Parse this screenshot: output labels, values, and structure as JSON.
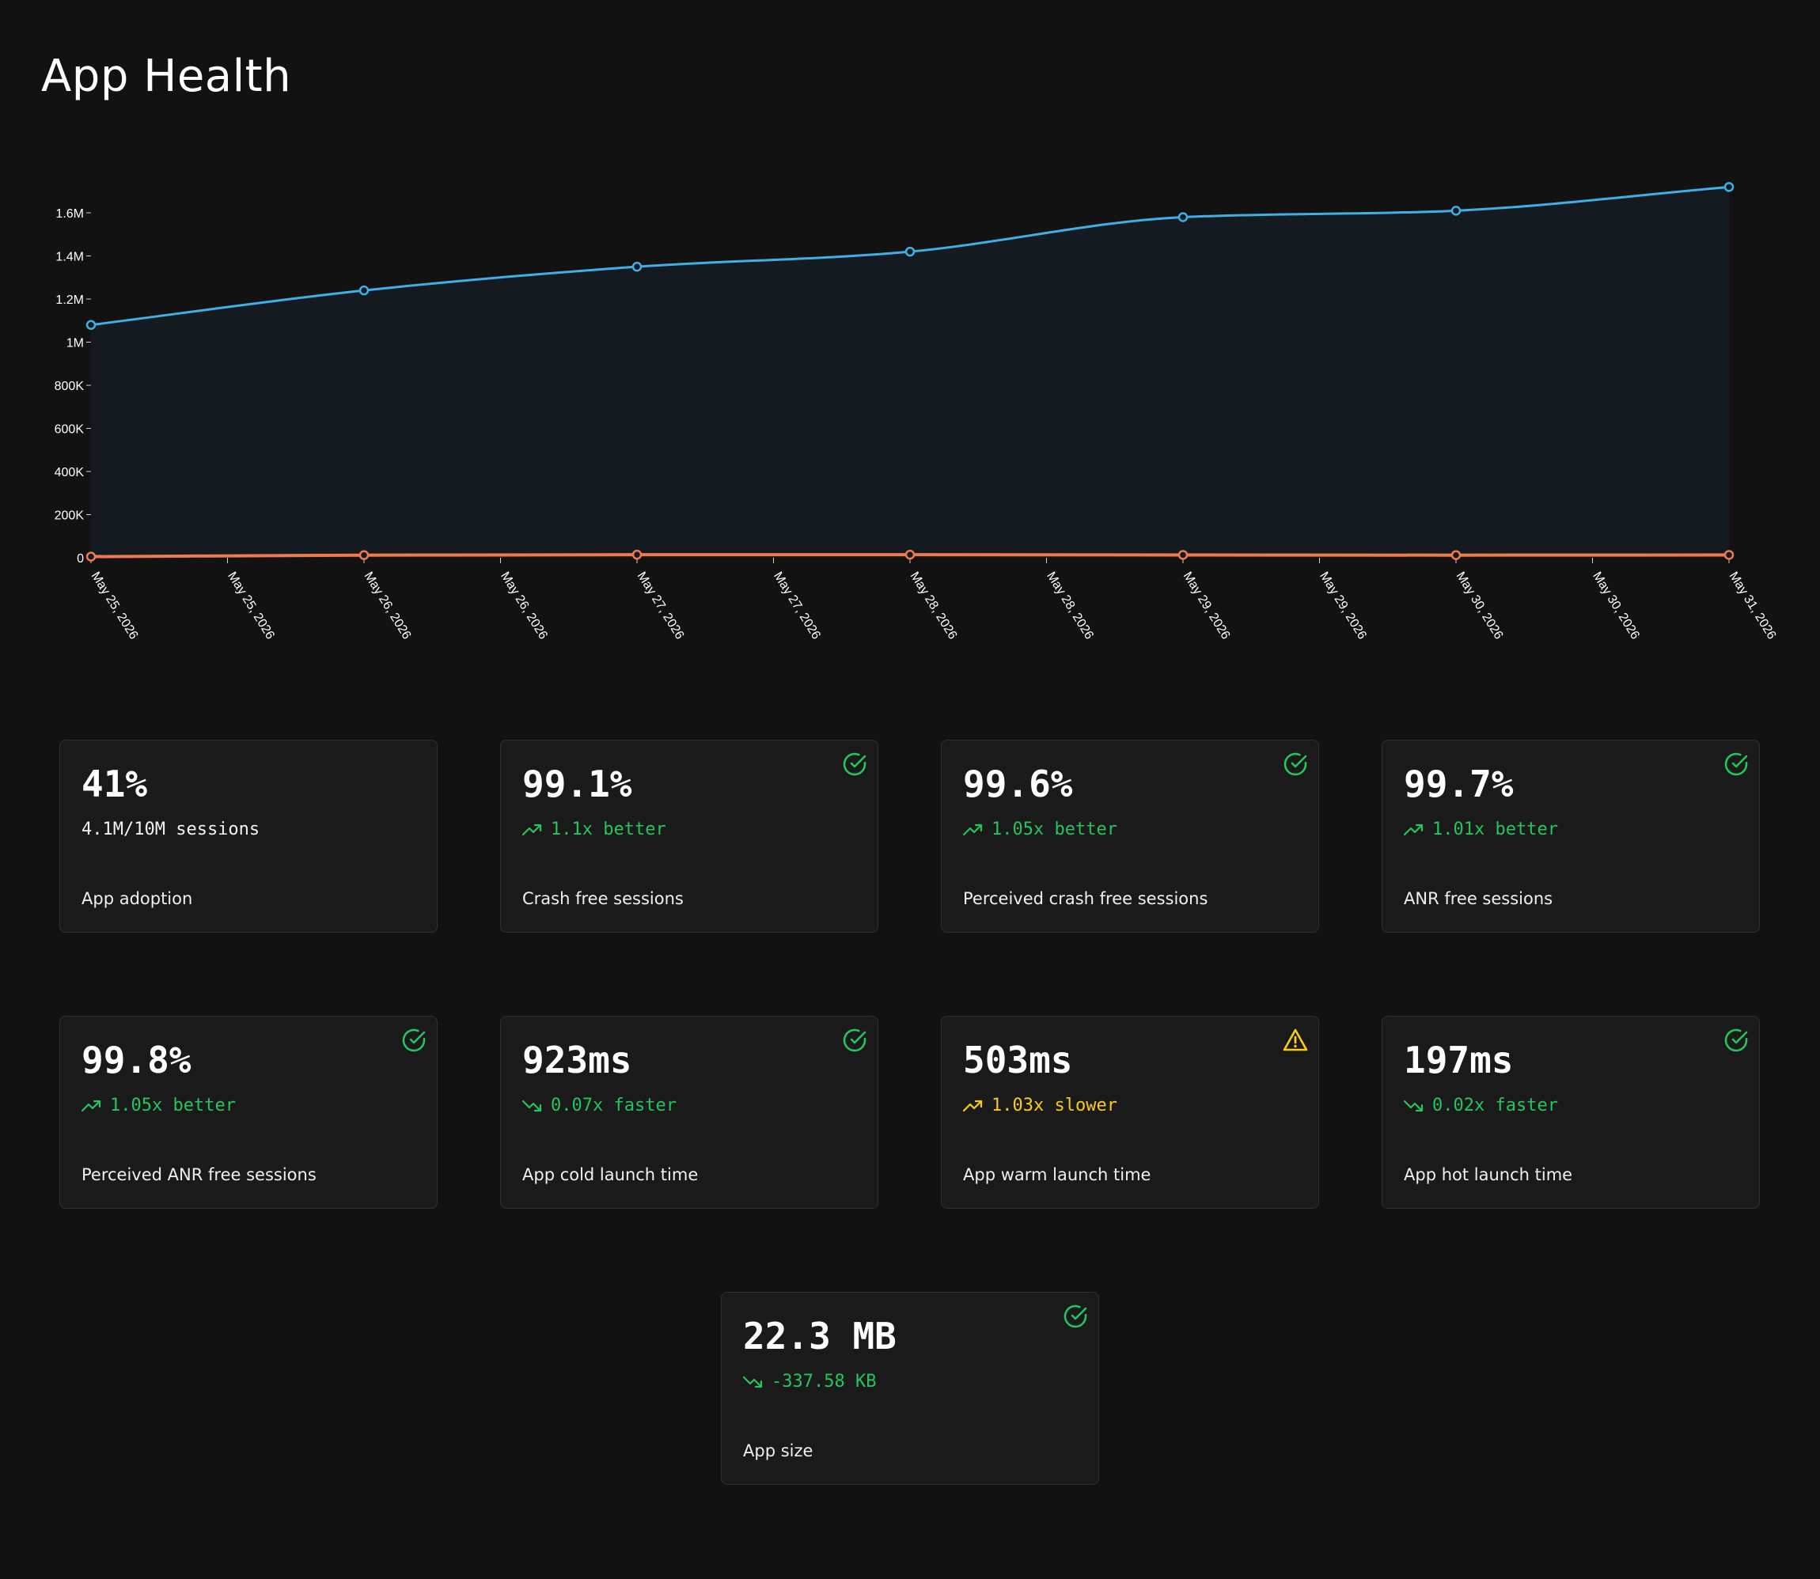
{
  "page": {
    "title": "App Health"
  },
  "colors": {
    "background": "#121212",
    "card_background": "#1a1a1a",
    "card_border": "#303030",
    "good": "#22c55e",
    "warn": "#facc15",
    "series_sessions": "#3fb0e6",
    "series_crashes": "#f07a50",
    "area_fill": "#141a20"
  },
  "chart_data": {
    "type": "line",
    "title": "",
    "xlabel": "",
    "ylabel": "",
    "x": [
      "2026-05-25",
      "2026-05-26",
      "2026-05-27",
      "2026-05-28",
      "2026-05-29",
      "2026-05-30",
      "2026-05-31"
    ],
    "x_tick_labels": [
      "May 25, 2026",
      "May 25, 2026",
      "May 26, 2026",
      "May 26, 2026",
      "May 27, 2026",
      "May 27, 2026",
      "May 28, 2026",
      "May 28, 2026",
      "May 29, 2026",
      "May 29, 2026",
      "May 30, 2026",
      "May 30, 2026",
      "May 31, 2026"
    ],
    "y_ticks": [
      0,
      200000,
      400000,
      600000,
      800000,
      1000000,
      1200000,
      1400000,
      1600000
    ],
    "y_tick_labels": [
      "0",
      "200K",
      "400K",
      "600K",
      "800K",
      "1M",
      "1.2M",
      "1.4M",
      "1.6M"
    ],
    "ylim": [
      0,
      1780000
    ],
    "grid": false,
    "legend": "none",
    "series": [
      {
        "color": "#3fb0e6",
        "area": true,
        "values": [
          1080000,
          1240000,
          1350000,
          1420000,
          1580000,
          1610000,
          1720000
        ]
      },
      {
        "color": "#f07a50",
        "area": false,
        "values": [
          5000,
          12000,
          14000,
          14000,
          13000,
          12000,
          13000
        ]
      }
    ]
  },
  "metrics": [
    {
      "value": "41%",
      "delta": "4.1M/10M sessions",
      "label": "App adoption",
      "trend": "none",
      "tone": "plain",
      "status": "none"
    },
    {
      "value": "99.1%",
      "delta": "1.1x better",
      "label": "Crash free sessions",
      "trend": "up",
      "tone": "good",
      "status": "check-circle"
    },
    {
      "value": "99.6%",
      "delta": "1.05x better",
      "label": "Perceived crash free sessions",
      "trend": "up",
      "tone": "good",
      "status": "check-circle"
    },
    {
      "value": "99.7%",
      "delta": "1.01x better",
      "label": "ANR free sessions",
      "trend": "up",
      "tone": "good",
      "status": "check-circle"
    },
    {
      "value": "99.8%",
      "delta": "1.05x better",
      "label": "Perceived ANR free sessions",
      "trend": "up",
      "tone": "good",
      "status": "check-circle"
    },
    {
      "value": "923ms",
      "delta": "0.07x faster",
      "label": "App cold launch time",
      "trend": "down",
      "tone": "good",
      "status": "check-circle"
    },
    {
      "value": "503ms",
      "delta": "1.03x slower",
      "label": "App warm launch time",
      "trend": "up",
      "tone": "warn",
      "status": "warning-triangle"
    },
    {
      "value": "197ms",
      "delta": "0.02x faster",
      "label": "App hot launch time",
      "trend": "down",
      "tone": "good",
      "status": "check-circle"
    },
    {
      "value": "22.3 MB",
      "delta": "-337.58 KB",
      "label": "App size",
      "trend": "down",
      "tone": "good",
      "status": "check-circle"
    }
  ]
}
